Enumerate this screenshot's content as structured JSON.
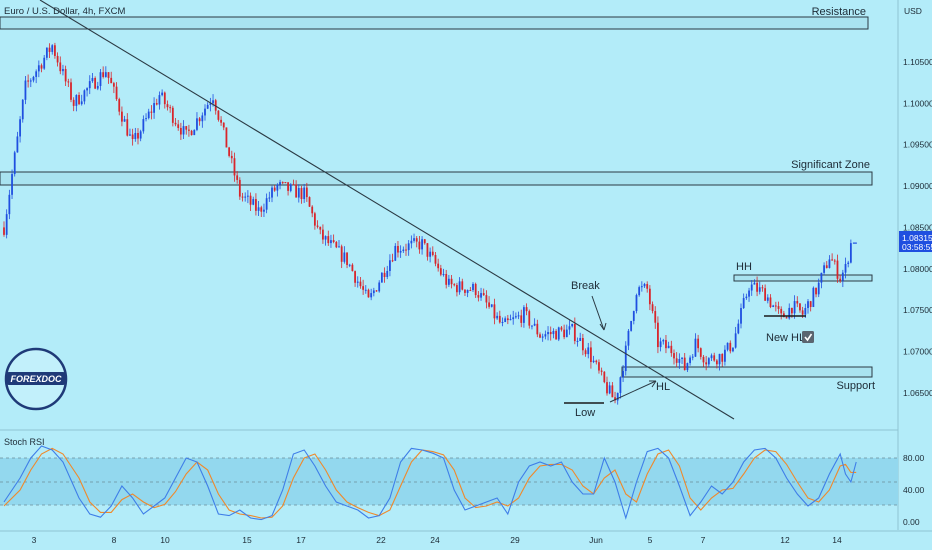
{
  "header": {
    "symbol_title": "Euro / U.S. Dollar, 4h, FXCM"
  },
  "price_axis": {
    "currency": "USD",
    "ticks": [
      "1.10500",
      "1.10000",
      "1.09500",
      "1.09000",
      "1.08500",
      "1.08000",
      "1.07500",
      "1.07000",
      "1.06500"
    ],
    "last_price": "1.08315",
    "countdown": "03:58:55"
  },
  "time_axis": {
    "ticks": [
      "3",
      "8",
      "10",
      "15",
      "17",
      "22",
      "24",
      "29",
      "Jun",
      "5",
      "7",
      "12",
      "14"
    ]
  },
  "zones": {
    "resistance": "Resistance",
    "significant": "Significant Zone",
    "support": "Support"
  },
  "annotations": {
    "break": "Break",
    "hh": "HH",
    "new_hl": "New HL",
    "hl": "HL",
    "low": "Low"
  },
  "logo": {
    "text": "FOREXDOC"
  },
  "stoch_rsi": {
    "title": "Stoch RSI",
    "ticks": [
      "80.00",
      "40.00",
      "0.00"
    ]
  },
  "colors": {
    "background": "#b3ecf9",
    "bull_candle": "#1f4fe0",
    "bear_candle": "#d8252b",
    "k_line": "#3f7ee8",
    "d_line": "#f0892a",
    "band": "#93d8ee",
    "last_price_tag": "#1f4fe0"
  },
  "chart_data": {
    "type": "candlestick",
    "ylim": [
      1.0605,
      1.1125
    ],
    "key_levels": {
      "resistance": [
        1.1073,
        1.1088
      ],
      "significant_zone": [
        1.0893,
        1.0908
      ],
      "hh_zone": [
        1.078,
        1.0786
      ],
      "support": [
        1.0666,
        1.0676
      ]
    },
    "trendline": {
      "from": [
        0,
        1.113
      ],
      "to": [
        288,
        1.0605
      ]
    },
    "path": [
      [
        0,
        1.085
      ],
      [
        8,
        1.102
      ],
      [
        18,
        1.107
      ],
      [
        26,
        1.1
      ],
      [
        38,
        1.104
      ],
      [
        48,
        1.095
      ],
      [
        58,
        1.101
      ],
      [
        68,
        1.096
      ],
      [
        78,
        1.101
      ],
      [
        88,
        1.089
      ],
      [
        95,
        1.087
      ],
      [
        102,
        1.09
      ],
      [
        112,
        1.089
      ],
      [
        118,
        1.084
      ],
      [
        128,
        1.081
      ],
      [
        136,
        1.076
      ],
      [
        146,
        1.0825
      ],
      [
        156,
        1.083
      ],
      [
        166,
        1.078
      ],
      [
        176,
        1.0775
      ],
      [
        186,
        1.073
      ],
      [
        194,
        1.0745
      ],
      [
        200,
        1.072
      ],
      [
        212,
        1.0725
      ],
      [
        218,
        1.07
      ],
      [
        224,
        1.066
      ],
      [
        228,
        1.064
      ],
      [
        232,
        1.07
      ],
      [
        236,
        1.0775
      ],
      [
        240,
        1.0775
      ],
      [
        244,
        1.071
      ],
      [
        250,
        1.07
      ],
      [
        254,
        1.068
      ],
      [
        258,
        1.071
      ],
      [
        262,
        1.069
      ],
      [
        268,
        1.0695
      ],
      [
        272,
        1.071
      ],
      [
        278,
        1.078
      ],
      [
        284,
        1.077
      ],
      [
        290,
        1.074
      ],
      [
        294,
        1.0755
      ],
      [
        298,
        1.0745
      ],
      [
        304,
        1.078
      ],
      [
        308,
        1.0815
      ],
      [
        312,
        1.079
      ],
      [
        314,
        1.08
      ],
      [
        316,
        1.0831
      ]
    ],
    "stoch_rsi": {
      "ylim": [
        0,
        100
      ],
      "bands": [
        20,
        80
      ],
      "k": [
        [
          0,
          25
        ],
        [
          6,
          55
        ],
        [
          10,
          80
        ],
        [
          14,
          95
        ],
        [
          18,
          90
        ],
        [
          22,
          75
        ],
        [
          28,
          30
        ],
        [
          32,
          10
        ],
        [
          36,
          6
        ],
        [
          40,
          20
        ],
        [
          44,
          45
        ],
        [
          48,
          30
        ],
        [
          52,
          10
        ],
        [
          56,
          20
        ],
        [
          60,
          30
        ],
        [
          64,
          55
        ],
        [
          68,
          80
        ],
        [
          72,
          75
        ],
        [
          76,
          45
        ],
        [
          80,
          10
        ],
        [
          84,
          8
        ],
        [
          88,
          15
        ],
        [
          92,
          5
        ],
        [
          96,
          3
        ],
        [
          100,
          8
        ],
        [
          104,
          40
        ],
        [
          108,
          85
        ],
        [
          112,
          90
        ],
        [
          116,
          70
        ],
        [
          120,
          45
        ],
        [
          124,
          25
        ],
        [
          128,
          20
        ],
        [
          132,
          15
        ],
        [
          136,
          5
        ],
        [
          140,
          8
        ],
        [
          144,
          30
        ],
        [
          148,
          75
        ],
        [
          152,
          92
        ],
        [
          156,
          90
        ],
        [
          160,
          86
        ],
        [
          164,
          80
        ],
        [
          168,
          40
        ],
        [
          172,
          15
        ],
        [
          176,
          20
        ],
        [
          180,
          25
        ],
        [
          184,
          30
        ],
        [
          188,
          10
        ],
        [
          192,
          50
        ],
        [
          196,
          70
        ],
        [
          200,
          75
        ],
        [
          204,
          70
        ],
        [
          208,
          75
        ],
        [
          212,
          50
        ],
        [
          216,
          35
        ],
        [
          220,
          35
        ],
        [
          224,
          80
        ],
        [
          228,
          50
        ],
        [
          232,
          5
        ],
        [
          236,
          50
        ],
        [
          240,
          88
        ],
        [
          244,
          92
        ],
        [
          248,
          80
        ],
        [
          252,
          45
        ],
        [
          256,
          8
        ],
        [
          260,
          25
        ],
        [
          264,
          45
        ],
        [
          268,
          35
        ],
        [
          272,
          50
        ],
        [
          276,
          75
        ],
        [
          280,
          90
        ],
        [
          284,
          92
        ],
        [
          288,
          80
        ],
        [
          292,
          55
        ],
        [
          296,
          35
        ],
        [
          300,
          20
        ],
        [
          304,
          30
        ],
        [
          308,
          60
        ],
        [
          312,
          85
        ],
        [
          314,
          60
        ],
        [
          316,
          50
        ],
        [
          318,
          75
        ]
      ],
      "d": [
        [
          0,
          20
        ],
        [
          6,
          40
        ],
        [
          10,
          65
        ],
        [
          14,
          85
        ],
        [
          18,
          92
        ],
        [
          22,
          85
        ],
        [
          28,
          55
        ],
        [
          32,
          25
        ],
        [
          36,
          12
        ],
        [
          40,
          12
        ],
        [
          44,
          28
        ],
        [
          48,
          35
        ],
        [
          52,
          25
        ],
        [
          56,
          18
        ],
        [
          60,
          22
        ],
        [
          64,
          38
        ],
        [
          68,
          60
        ],
        [
          72,
          75
        ],
        [
          76,
          65
        ],
        [
          80,
          35
        ],
        [
          84,
          15
        ],
        [
          88,
          10
        ],
        [
          92,
          8
        ],
        [
          96,
          5
        ],
        [
          100,
          6
        ],
        [
          104,
          20
        ],
        [
          108,
          55
        ],
        [
          112,
          80
        ],
        [
          116,
          85
        ],
        [
          120,
          65
        ],
        [
          124,
          40
        ],
        [
          128,
          25
        ],
        [
          132,
          18
        ],
        [
          136,
          12
        ],
        [
          140,
          8
        ],
        [
          144,
          15
        ],
        [
          148,
          45
        ],
        [
          152,
          75
        ],
        [
          156,
          90
        ],
        [
          160,
          88
        ],
        [
          164,
          84
        ],
        [
          168,
          65
        ],
        [
          172,
          30
        ],
        [
          176,
          18
        ],
        [
          180,
          20
        ],
        [
          184,
          25
        ],
        [
          188,
          20
        ],
        [
          192,
          30
        ],
        [
          196,
          55
        ],
        [
          200,
          70
        ],
        [
          204,
          72
        ],
        [
          208,
          72
        ],
        [
          212,
          65
        ],
        [
          216,
          45
        ],
        [
          220,
          35
        ],
        [
          224,
          55
        ],
        [
          228,
          65
        ],
        [
          232,
          35
        ],
        [
          236,
          25
        ],
        [
          240,
          60
        ],
        [
          244,
          85
        ],
        [
          248,
          90
        ],
        [
          252,
          70
        ],
        [
          256,
          30
        ],
        [
          260,
          15
        ],
        [
          264,
          30
        ],
        [
          268,
          40
        ],
        [
          272,
          42
        ],
        [
          276,
          60
        ],
        [
          280,
          80
        ],
        [
          284,
          90
        ],
        [
          288,
          88
        ],
        [
          292,
          72
        ],
        [
          296,
          50
        ],
        [
          300,
          30
        ],
        [
          304,
          25
        ],
        [
          308,
          40
        ],
        [
          312,
          70
        ],
        [
          314,
          72
        ],
        [
          316,
          62
        ],
        [
          318,
          62
        ]
      ]
    }
  }
}
